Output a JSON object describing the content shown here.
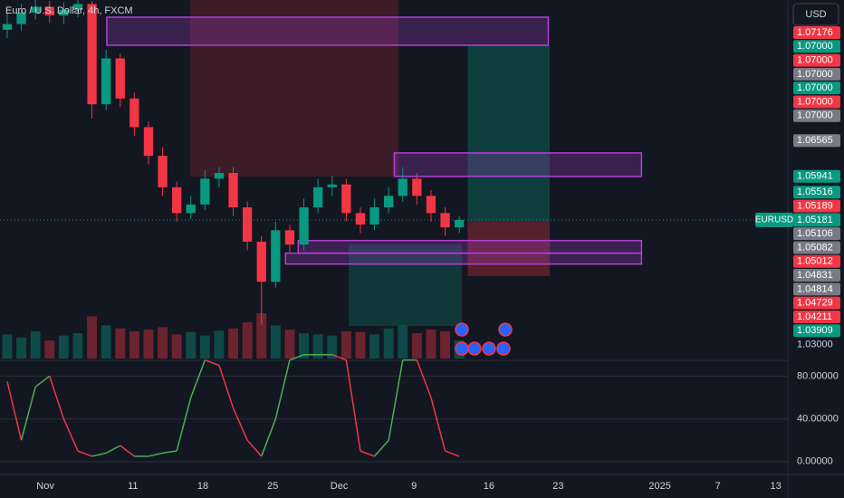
{
  "header": {
    "symbol_title": "Euro / U.S. Dollar, 4h, FXCM",
    "currency": "USD"
  },
  "chart_data": {
    "type": "candlestick",
    "open": [
      1.085,
      1.086,
      1.088,
      1.089,
      1.0875,
      1.0885,
      1.0895,
      1.072,
      1.08,
      1.073,
      1.068,
      1.063,
      1.0575,
      1.053,
      1.0545,
      1.059,
      1.06,
      1.054,
      1.048,
      1.041,
      1.05,
      1.0475,
      1.054,
      1.0575,
      1.058,
      1.053,
      1.051,
      1.054,
      1.056,
      1.059,
      1.056,
      1.053,
      1.0505
    ],
    "high": [
      1.0878,
      1.0895,
      1.0902,
      1.09,
      1.0898,
      1.0902,
      1.09,
      1.0815,
      1.0808,
      1.074,
      1.069,
      1.0645,
      1.0585,
      1.056,
      1.0605,
      1.061,
      1.061,
      1.055,
      1.049,
      1.0515,
      1.051,
      1.0555,
      1.059,
      1.0595,
      1.059,
      1.054,
      1.0555,
      1.0575,
      1.061,
      1.06,
      1.057,
      1.054,
      1.0525
    ],
    "low": [
      1.0835,
      1.0848,
      1.0868,
      1.0862,
      1.086,
      1.0872,
      1.0695,
      1.071,
      1.0715,
      1.0665,
      1.0615,
      1.056,
      1.0515,
      1.052,
      1.0535,
      1.0575,
      1.0525,
      1.0465,
      1.0335,
      1.04,
      1.046,
      1.0465,
      1.053,
      1.056,
      1.0515,
      1.0495,
      1.05,
      1.053,
      1.055,
      1.0545,
      1.0515,
      1.049,
      1.0495
    ],
    "close": [
      1.086,
      1.088,
      1.089,
      1.0875,
      1.0885,
      1.0895,
      1.072,
      1.08,
      1.073,
      1.068,
      1.063,
      1.0575,
      1.053,
      1.0545,
      1.059,
      1.06,
      1.054,
      1.048,
      1.041,
      1.05,
      1.0475,
      1.054,
      1.0575,
      1.058,
      1.053,
      1.051,
      1.054,
      1.056,
      1.059,
      1.056,
      1.053,
      1.0505,
      1.0518
    ],
    "volume": [
      40,
      35,
      45,
      30,
      38,
      42,
      70,
      55,
      50,
      45,
      48,
      52,
      40,
      44,
      38,
      46,
      50,
      60,
      75,
      55,
      48,
      42,
      40,
      38,
      45,
      44,
      40,
      50,
      55,
      42,
      48,
      45,
      30
    ],
    "up_color": "#089981",
    "down_color": "#f23645",
    "xlim": [
      -0.51,
      55.26
    ],
    "ylim": [
      1.0276,
      1.0902
    ],
    "xticks": [
      {
        "value": 2.7,
        "label": "Nov"
      },
      {
        "value": 8.9,
        "label": "11"
      },
      {
        "value": 13.85,
        "label": "18"
      },
      {
        "value": 18.8,
        "label": "25"
      },
      {
        "value": 23.5,
        "label": "Dec"
      },
      {
        "value": 28.8,
        "label": "9"
      },
      {
        "value": 34.1,
        "label": "16"
      },
      {
        "value": 39.0,
        "label": "23"
      },
      {
        "value": 46.2,
        "label": "2025"
      },
      {
        "value": 50.3,
        "label": "7"
      },
      {
        "value": 54.4,
        "label": "13"
      }
    ],
    "yticks": [
      {
        "value": 1.03,
        "label": "1.03000"
      }
    ],
    "current_price": {
      "name": "EURUSD",
      "value": 1.05181,
      "color": "#089981"
    },
    "price_labels": [
      {
        "value": 1.07176,
        "color": "#f23645"
      },
      {
        "value": 1.07,
        "label": "1.07000",
        "color": "#089981"
      },
      {
        "value": 1.07,
        "label": "1.07000",
        "color": "#f23645"
      },
      {
        "value": 1.07,
        "label": "1.07000",
        "color": "#787b86"
      },
      {
        "value": 1.07,
        "label": "1.07000",
        "color": "#089981"
      },
      {
        "value": 1.07,
        "label": "1.07000",
        "color": "#f23645"
      },
      {
        "value": 1.07,
        "label": "1.07000",
        "color": "#787b86"
      },
      {
        "value": 1.06565,
        "color": "#787b86"
      },
      {
        "value": 1.05941,
        "color": "#089981"
      },
      {
        "value": 1.05516,
        "color": "#089981"
      },
      {
        "value": 1.05189,
        "color": "#f23645"
      },
      {
        "value": 1.05106,
        "color": "#787b86"
      },
      {
        "value": 1.05082,
        "color": "#787b86"
      },
      {
        "value": 1.05012,
        "color": "#f23645"
      },
      {
        "value": 1.04831,
        "color": "#787b86"
      },
      {
        "value": 1.04814,
        "color": "#787b86"
      },
      {
        "value": 1.04729,
        "color": "#f23645"
      },
      {
        "value": 1.04211,
        "color": "#f23645"
      },
      {
        "value": 1.03909,
        "color": "#089981"
      }
    ],
    "zones": [
      {
        "top": 1.0872,
        "bottom": 1.0823,
        "start": 7.05,
        "end": 38.3
      },
      {
        "top": 1.0635,
        "bottom": 1.0594,
        "start": 27.4,
        "end": 44.9
      },
      {
        "top": 1.0482,
        "bottom": 1.046,
        "start": 20.6,
        "end": 44.9
      },
      {
        "top": 1.046,
        "bottom": 1.0441,
        "start": 19.7,
        "end": 44.9
      }
    ],
    "zone_color": "#b13fd6",
    "position": {
      "entry": 1.0515,
      "target": 1.0823,
      "stop": 1.042,
      "start": 32.6,
      "end": 38.4
    },
    "indicator": {
      "type": "line",
      "values": [
        75,
        20,
        70,
        80,
        40,
        10,
        5,
        8,
        15,
        5,
        5,
        8,
        10,
        60,
        95,
        90,
        50,
        20,
        5,
        40,
        95,
        100,
        100,
        100,
        95,
        10,
        5,
        20,
        95,
        95,
        60,
        10,
        5
      ],
      "ylim": [
        -12,
        93
      ],
      "yticks": [
        {
          "value": 80,
          "label": "80.00000"
        },
        {
          "value": 40,
          "label": "40.00000"
        },
        {
          "value": 0,
          "label": "0.00000"
        }
      ],
      "rising_color": "#4caf50",
      "falling_color": "#f23645"
    }
  }
}
